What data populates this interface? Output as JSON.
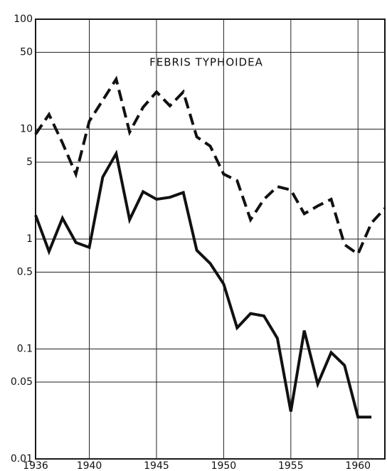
{
  "chart_data": {
    "type": "line",
    "annotation": "FEBRIS TYPHOIDEA",
    "log_y": true,
    "grid": true,
    "x": [
      1936,
      1937,
      1938,
      1939,
      1940,
      1941,
      1942,
      1943,
      1944,
      1945,
      1946,
      1947,
      1948,
      1949,
      1950,
      1951,
      1952,
      1953,
      1954,
      1955,
      1956,
      1957,
      1958,
      1959,
      1960,
      1961,
      1962
    ],
    "series": [
      {
        "linestyle": "dashed",
        "color": "#111111",
        "values": [
          9.0,
          13.6,
          7.5,
          3.9,
          11.8,
          18.3,
          28.5,
          9.4,
          15.8,
          21.8,
          16.3,
          21.8,
          8.5,
          7.0,
          3.9,
          3.4,
          1.5,
          2.3,
          3.0,
          2.8,
          1.7,
          2.0,
          2.3,
          0.89,
          0.73,
          1.4,
          1.9
        ]
      },
      {
        "linestyle": "solid",
        "color": "#111111",
        "values": [
          1.65,
          0.77,
          1.55,
          0.93,
          0.84,
          3.66,
          6.0,
          1.5,
          2.7,
          2.3,
          2.4,
          2.65,
          0.79,
          0.6,
          0.39,
          0.156,
          0.21,
          0.2,
          0.125,
          0.027,
          0.147,
          0.048,
          0.093,
          0.071,
          0.024,
          0.024,
          null
        ]
      }
    ],
    "xlim": [
      1936,
      1962
    ],
    "xticks": [
      1936,
      1940,
      1945,
      1950,
      1955,
      1960
    ],
    "ylim": [
      0.01,
      100
    ],
    "yticks": [
      100,
      50,
      10,
      5,
      1,
      0.5,
      0.1,
      0.05,
      0.01
    ]
  }
}
